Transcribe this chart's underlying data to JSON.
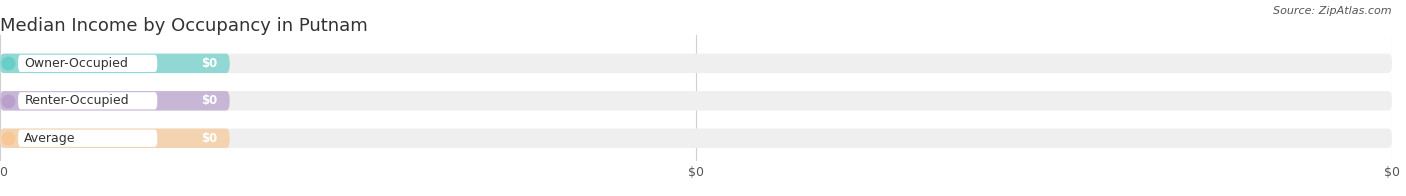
{
  "title": "Median Income by Occupancy in Putnam",
  "source": "Source: ZipAtlas.com",
  "categories": [
    "Owner-Occupied",
    "Renter-Occupied",
    "Average"
  ],
  "values": [
    0,
    0,
    0
  ],
  "bar_colors": [
    "#69cec8",
    "#b89fcc",
    "#f7c896"
  ],
  "bar_bg_color": "#efefef",
  "background_color": "#ffffff",
  "title_fontsize": 13,
  "axis_label_fontsize": 9,
  "value_label": "$0",
  "xlim_max": 100
}
